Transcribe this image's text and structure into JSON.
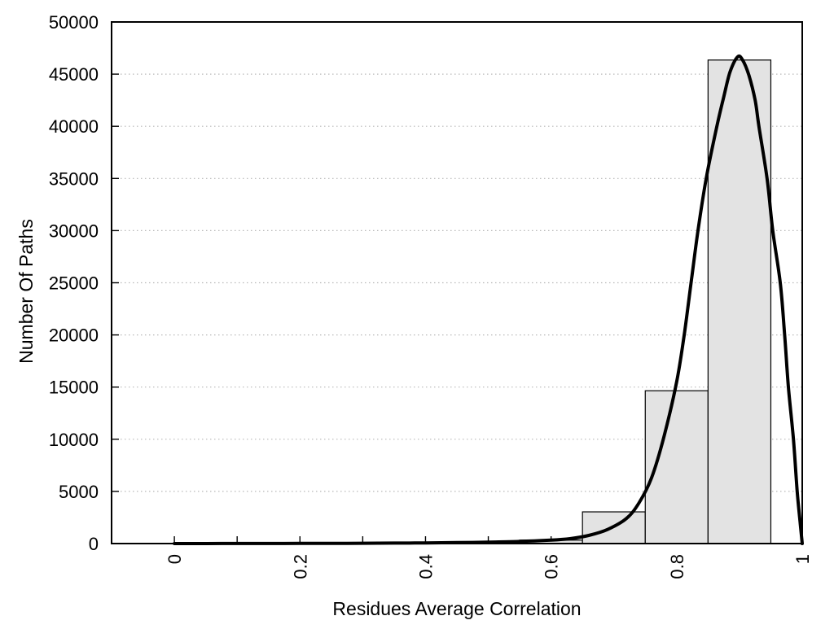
{
  "figure": {
    "background": "#ffffff",
    "border_color": "#000000"
  },
  "chart_data": {
    "type": "bar",
    "subtype": "histogram-with-fit-curve",
    "title": "",
    "xlabel": "Residues Average Correlation",
    "ylabel": "Number Of Paths",
    "xlim": [
      -0.1,
      1.0
    ],
    "ylim": [
      0,
      50000
    ],
    "x_tick_labels": [
      "0",
      "0.2",
      "0.4",
      "0.6",
      "0.8",
      "1"
    ],
    "x_major_tick_values": [
      0,
      0.2,
      0.4,
      0.6,
      0.8,
      1.0
    ],
    "x_minor_tick_values": [
      0.1,
      0.3,
      0.5,
      0.7,
      0.9
    ],
    "x_tick_label_rotation_deg": -90,
    "y_tick_values": [
      0,
      5000,
      10000,
      15000,
      20000,
      25000,
      30000,
      35000,
      40000,
      45000,
      50000
    ],
    "y_tick_labels": [
      "0",
      "5000",
      "10000",
      "15000",
      "20000",
      "25000",
      "30000",
      "35000",
      "40000",
      "45000",
      "50000"
    ],
    "y_grid_values": [
      5000,
      10000,
      15000,
      20000,
      25000,
      30000,
      35000,
      40000,
      45000
    ],
    "grid": {
      "horizontal": true,
      "vertical": false,
      "style": "dotted",
      "color": "#b8b8b8"
    },
    "legend": "none",
    "bars": {
      "fill": "#e3e3e3",
      "edge_color": "#000000",
      "bin_width": 0.1,
      "bins": [
        {
          "x0": 0.55,
          "x1": 0.65,
          "count": 330
        },
        {
          "x0": 0.65,
          "x1": 0.75,
          "count": 3040
        },
        {
          "x0": 0.75,
          "x1": 0.85,
          "count": 14650
        },
        {
          "x0": 0.85,
          "x1": 0.95,
          "count": 46350
        }
      ]
    },
    "fit_curve": {
      "color": "#000000",
      "stroke_width": 4,
      "peak": {
        "x": 0.897,
        "y": 46650
      },
      "points": [
        [
          0.0,
          0
        ],
        [
          0.05,
          3
        ],
        [
          0.1,
          6
        ],
        [
          0.15,
          10
        ],
        [
          0.2,
          15
        ],
        [
          0.25,
          21
        ],
        [
          0.3,
          30
        ],
        [
          0.35,
          43
        ],
        [
          0.4,
          62
        ],
        [
          0.45,
          90
        ],
        [
          0.5,
          135
        ],
        [
          0.55,
          200
        ],
        [
          0.6,
          330
        ],
        [
          0.63,
          470
        ],
        [
          0.66,
          780
        ],
        [
          0.69,
          1350
        ],
        [
          0.72,
          2400
        ],
        [
          0.74,
          3900
        ],
        [
          0.76,
          6300
        ],
        [
          0.78,
          10300
        ],
        [
          0.8,
          15500
        ],
        [
          0.812,
          20000
        ],
        [
          0.823,
          25000
        ],
        [
          0.834,
          30000
        ],
        [
          0.847,
          35000
        ],
        [
          0.864,
          40000
        ],
        [
          0.875,
          42800
        ],
        [
          0.885,
          45200
        ],
        [
          0.897,
          46650
        ],
        [
          0.905,
          46350
        ],
        [
          0.915,
          44900
        ],
        [
          0.925,
          42500
        ],
        [
          0.931,
          40000
        ],
        [
          0.944,
          35000
        ],
        [
          0.953,
          30000
        ],
        [
          0.965,
          25000
        ],
        [
          0.972,
          20000
        ],
        [
          0.978,
          15000
        ],
        [
          0.986,
          10000
        ],
        [
          0.992,
          5000
        ],
        [
          0.997,
          1800
        ],
        [
          1.0,
          0
        ]
      ]
    }
  }
}
